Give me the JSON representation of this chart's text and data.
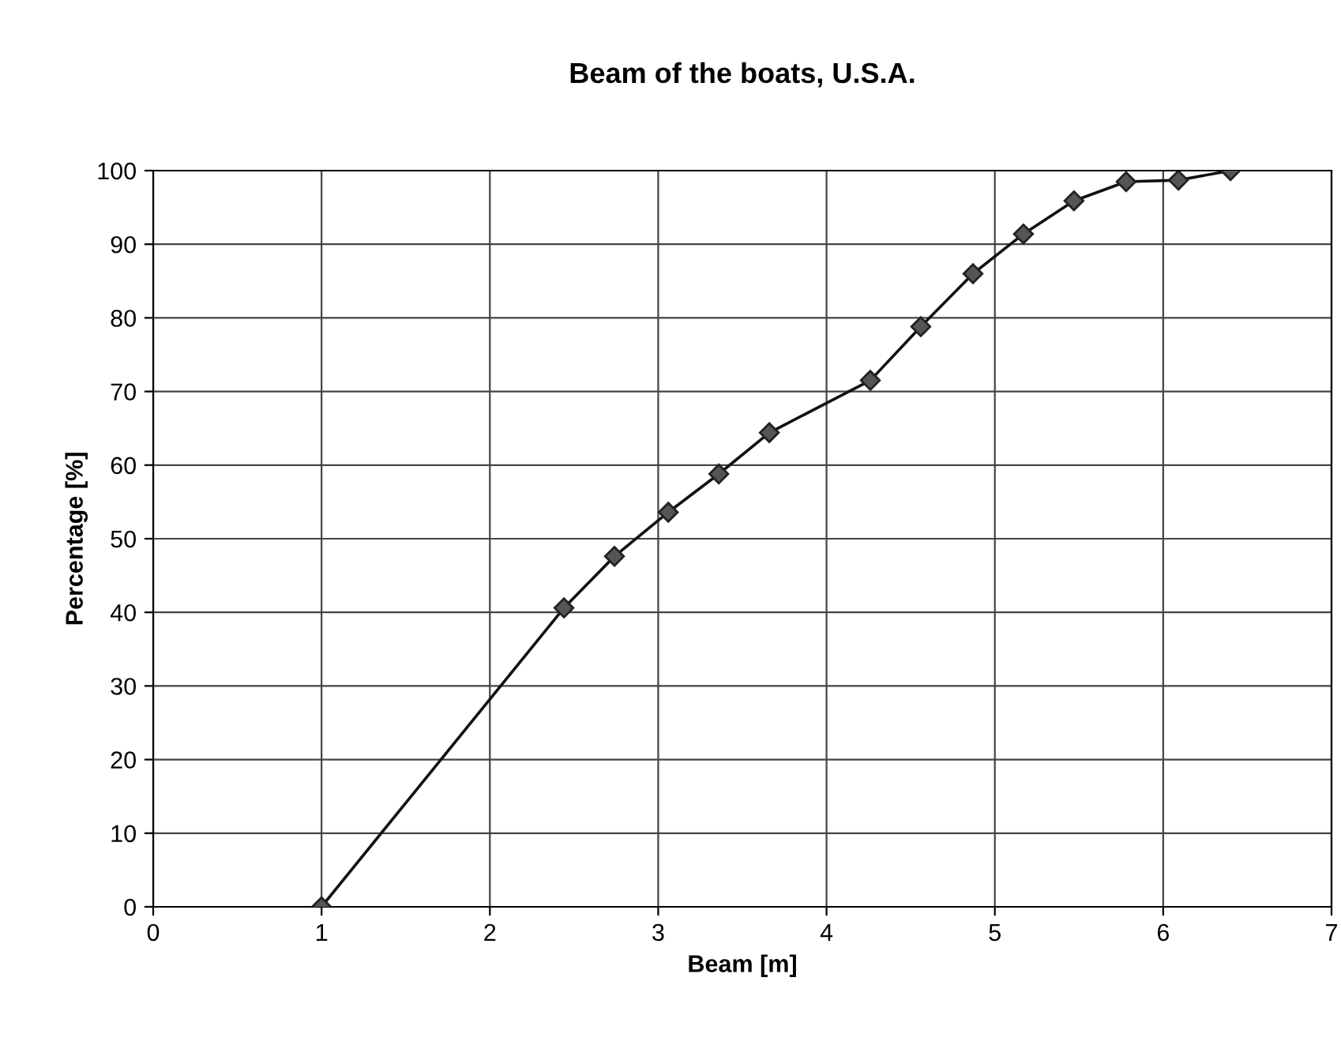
{
  "chart_data": {
    "type": "line",
    "title": "Beam of the boats, U.S.A.",
    "xlabel": "Beam [m]",
    "ylabel": "Percentage [%]",
    "x": [
      1.0,
      2.44,
      2.74,
      3.06,
      3.36,
      3.66,
      4.26,
      4.56,
      4.87,
      5.17,
      5.47,
      5.78,
      6.09,
      6.4
    ],
    "series": [
      {
        "color": "#111111",
        "values": [
          0,
          40.6,
          47.6,
          53.6,
          58.8,
          64.4,
          71.5,
          78.8,
          86.0,
          91.4,
          95.9,
          98.5,
          98.7,
          100
        ]
      }
    ],
    "xlim": [
      0,
      7
    ],
    "ylim": [
      0,
      100
    ],
    "xticks": [
      0,
      1,
      2,
      3,
      4,
      5,
      6,
      7
    ],
    "yticks": [
      0,
      10,
      20,
      30,
      40,
      50,
      60,
      70,
      80,
      90,
      100
    ],
    "grid": true,
    "marker": "diamond",
    "line_style": "solid",
    "legend": false
  }
}
